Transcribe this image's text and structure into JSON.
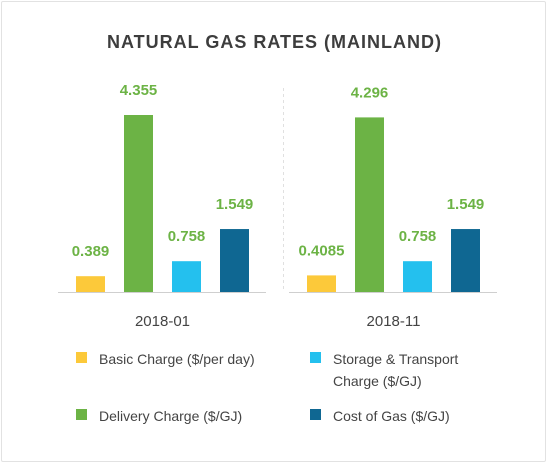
{
  "chart_data": {
    "type": "bar",
    "title": "NATURAL GAS RATES (MAINLAND)",
    "categories": [
      "2018-01",
      "2018-11"
    ],
    "series": [
      {
        "name": "Basic Charge ($/per day)",
        "values": [
          0.389,
          0.4085
        ],
        "labels": [
          "0.389",
          "0.4085"
        ]
      },
      {
        "name": "Delivery Charge ($/GJ)",
        "values": [
          4.355,
          4.296
        ],
        "labels": [
          "4.355",
          "4.296"
        ]
      },
      {
        "name": "Storage & Transport Charge ($/GJ)",
        "values": [
          0.758,
          0.758
        ],
        "labels": [
          "0.758",
          "0.758"
        ]
      },
      {
        "name": "Cost of Gas ($/GJ)",
        "values": [
          1.549,
          1.549
        ],
        "labels": [
          "1.549",
          "1.549"
        ]
      }
    ],
    "colors": [
      "#fcc93a",
      "#6cb345",
      "#24c0ee",
      "#0f6792"
    ],
    "label_color": "#6cb345",
    "ylim": [
      0,
      4.5
    ],
    "grid": false,
    "legend_position": "bottom",
    "legend": [
      {
        "lines": [
          "Basic Charge ($/per day)"
        ]
      },
      {
        "lines": [
          "Storage & Transport",
          "Charge ($/GJ)"
        ]
      },
      {
        "lines": [
          "Delivery Charge ($/GJ)"
        ]
      },
      {
        "lines": [
          "Cost of Gas ($/GJ)"
        ]
      }
    ]
  }
}
